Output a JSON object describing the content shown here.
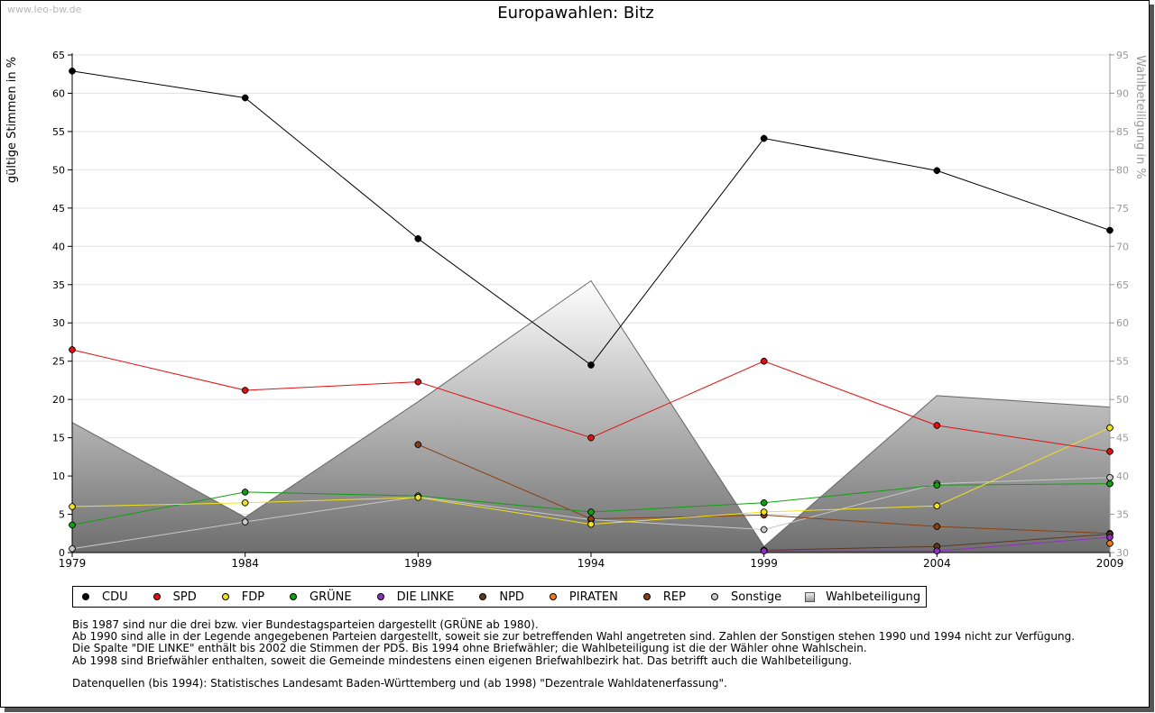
{
  "watermark": "www.leo-bw.de",
  "chart_data": {
    "type": "line",
    "title": "Europawahlen: Bitz",
    "ylabel_left": "gültige Stimmen in %",
    "ylabel_right": "Wahlbeteiligung in %",
    "x": [
      "1979",
      "1984",
      "1989",
      "1994",
      "1999",
      "2004",
      "2009"
    ],
    "ylim_left": [
      0,
      65
    ],
    "ylim_right": [
      30,
      95
    ],
    "yticks_left": [
      "0",
      "5",
      "10",
      "15",
      "20",
      "25",
      "30",
      "35",
      "40",
      "45",
      "50",
      "55",
      "60",
      "65"
    ],
    "yticks_right": [
      "30",
      "35",
      "40",
      "45",
      "50",
      "55",
      "60",
      "65",
      "70",
      "75",
      "80",
      "85",
      "90",
      "95"
    ],
    "grid": true,
    "legend_position": "bottom",
    "series": [
      {
        "name": "CDU",
        "color": "#000000",
        "values": [
          62.9,
          59.4,
          41.0,
          24.5,
          54.1,
          49.9,
          42.1
        ]
      },
      {
        "name": "SPD",
        "color": "#e01010",
        "values": [
          26.5,
          21.2,
          22.3,
          15.0,
          25.0,
          16.6,
          13.2
        ]
      },
      {
        "name": "FDP",
        "color": "#f0e020",
        "values": [
          6.0,
          6.5,
          7.2,
          3.7,
          5.3,
          6.1,
          16.3
        ]
      },
      {
        "name": "GRÜNE",
        "color": "#10a010",
        "values": [
          3.6,
          7.9,
          7.4,
          5.3,
          6.5,
          8.8,
          9.0
        ]
      },
      {
        "name": "DIE LINKE",
        "color": "#9030c0",
        "values": [
          null,
          null,
          null,
          null,
          0.2,
          0.2,
          2.0
        ]
      },
      {
        "name": "NPD",
        "color": "#5a3a20",
        "values": [
          null,
          null,
          null,
          null,
          0.3,
          0.8,
          2.4
        ]
      },
      {
        "name": "PIRATEN",
        "color": "#f07820",
        "values": [
          null,
          null,
          null,
          null,
          null,
          null,
          1.2
        ]
      },
      {
        "name": "REP",
        "color": "#8b4010",
        "values": [
          null,
          null,
          14.1,
          4.4,
          4.9,
          3.4,
          2.5
        ]
      },
      {
        "name": "Sonstige",
        "color": "#c8c8c8",
        "values": [
          0.5,
          4.0,
          7.3,
          4.3,
          3.0,
          9.0,
          9.8
        ]
      }
    ],
    "area": {
      "name": "Wahlbeteiligung",
      "axis": "right",
      "values": [
        47.0,
        34.6,
        49.7,
        65.5,
        30.8,
        50.5,
        49.0
      ]
    }
  },
  "legend": [
    {
      "label": "CDU",
      "color": "#000000"
    },
    {
      "label": "SPD",
      "color": "#e01010"
    },
    {
      "label": "FDP",
      "color": "#f0e020"
    },
    {
      "label": "GRÜNE",
      "color": "#10a010"
    },
    {
      "label": "DIE LINKE",
      "color": "#9030c0"
    },
    {
      "label": "NPD",
      "color": "#5a3a20"
    },
    {
      "label": "PIRATEN",
      "color": "#f07820"
    },
    {
      "label": "REP",
      "color": "#8b4010"
    },
    {
      "label": "Sonstige",
      "color": "#c8c8c8"
    },
    {
      "label": "Wahlbeteiligung",
      "color": "#aaaaaa"
    }
  ],
  "notes": {
    "line1": "Bis 1987 sind nur die drei bzw. vier Bundestagsparteien dargestellt (GRÜNE ab 1980).",
    "line2": "Ab 1990 sind alle in der Legende angegebenen Parteien dargestellt, soweit sie zur betreffenden Wahl angetreten sind. Zahlen der Sonstigen stehen 1990 und 1994 nicht zur Verfügung.",
    "line3": "Die Spalte \"DIE LINKE\" enthält bis 2002 die Stimmen der PDS. Bis 1994 ohne Briefwähler; die Wahlbeteiligung ist die der Wähler ohne Wahlschein.",
    "line4": "Ab 1998 sind Briefwähler enthalten, soweit die Gemeinde mindestens einen eigenen Briefwahlbezirk hat. Das betrifft auch die Wahlbeteiligung.",
    "line5": "Datenquellen (bis 1994): Statistisches Landesamt Baden-Württemberg und (ab 1998) \"Dezentrale Wahldatenerfassung\"."
  }
}
